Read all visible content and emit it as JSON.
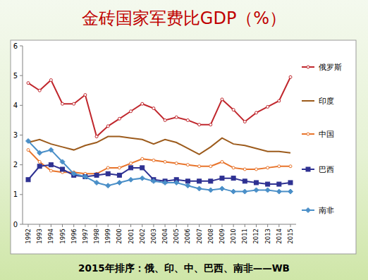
{
  "chart_data": {
    "type": "line",
    "title": "金砖国家军费比GDP（%）",
    "annotation": "2015年排序：俄、印、中、巴西、南非——WB",
    "categories": [
      "1992",
      "1993",
      "1994",
      "1995",
      "1996",
      "1997",
      "1998",
      "1999",
      "2000",
      "2001",
      "2002",
      "2003",
      "2004",
      "2005",
      "2006",
      "2007",
      "2008",
      "2009",
      "2010",
      "2011",
      "2012",
      "2013",
      "2014",
      "2015"
    ],
    "series": [
      {
        "name": "俄罗斯",
        "color": "#c0272d",
        "marker": "circle",
        "values": [
          4.75,
          4.5,
          4.85,
          4.05,
          4.05,
          4.35,
          2.95,
          3.3,
          3.55,
          3.8,
          4.05,
          3.9,
          3.5,
          3.6,
          3.5,
          3.35,
          3.35,
          4.2,
          3.85,
          3.45,
          3.75,
          3.95,
          4.15,
          4.95
        ]
      },
      {
        "name": "印度",
        "color": "#9c5b1c",
        "marker": "none",
        "values": [
          2.75,
          2.85,
          2.7,
          2.6,
          2.5,
          2.65,
          2.75,
          2.95,
          2.95,
          2.9,
          2.85,
          2.7,
          2.85,
          2.75,
          2.55,
          2.35,
          2.6,
          2.9,
          2.7,
          2.65,
          2.55,
          2.45,
          2.45,
          2.4
        ]
      },
      {
        "name": "中国",
        "color": "#e8742b",
        "marker": "circle",
        "values": [
          2.5,
          2.1,
          1.8,
          1.75,
          1.75,
          1.7,
          1.7,
          1.9,
          1.9,
          2.05,
          2.2,
          2.15,
          2.1,
          2.05,
          2.0,
          1.95,
          1.95,
          2.1,
          1.9,
          1.85,
          1.85,
          1.9,
          1.95,
          1.95
        ]
      },
      {
        "name": "巴西",
        "color": "#2e3192",
        "marker": "square",
        "values": [
          1.5,
          1.95,
          2.0,
          1.85,
          1.65,
          1.6,
          1.65,
          1.7,
          1.65,
          1.9,
          1.9,
          1.5,
          1.45,
          1.5,
          1.45,
          1.45,
          1.45,
          1.55,
          1.55,
          1.45,
          1.4,
          1.35,
          1.35,
          1.4
        ]
      },
      {
        "name": "南非",
        "color": "#4a8fc8",
        "marker": "diamond",
        "values": [
          2.8,
          2.4,
          2.5,
          2.1,
          1.7,
          1.6,
          1.4,
          1.3,
          1.4,
          1.5,
          1.55,
          1.45,
          1.4,
          1.4,
          1.3,
          1.2,
          1.15,
          1.2,
          1.1,
          1.1,
          1.15,
          1.15,
          1.1,
          1.1
        ]
      }
    ],
    "ylim": [
      0,
      6
    ],
    "yticks": [
      0,
      1,
      2,
      3,
      4,
      5,
      6
    ],
    "grid": false,
    "legend": "right"
  }
}
